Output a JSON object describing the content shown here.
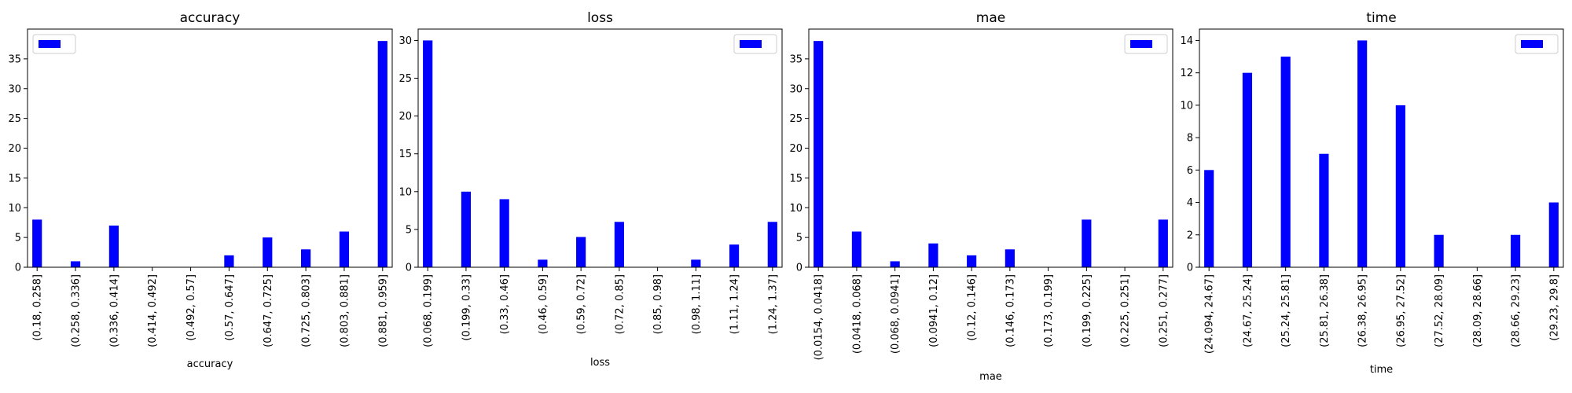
{
  "chart_data": [
    {
      "type": "bar",
      "title": "accuracy",
      "xlabel": "accuracy",
      "ylabel": "",
      "legend": "top-left",
      "grid": false,
      "bar_color": "#0000ff",
      "ylim": [
        0,
        40
      ],
      "yticks": [
        0,
        5,
        10,
        15,
        20,
        25,
        30,
        35
      ],
      "categories": [
        "(0.18, 0.258]",
        "(0.258, 0.336]",
        "(0.336, 0.414]",
        "(0.414, 0.492]",
        "(0.492, 0.57]",
        "(0.57, 0.647]",
        "(0.647, 0.725]",
        "(0.725, 0.803]",
        "(0.803, 0.881]",
        "(0.881, 0.959]"
      ],
      "values": [
        8,
        1,
        7,
        0,
        0,
        2,
        5,
        3,
        6,
        38
      ]
    },
    {
      "type": "bar",
      "title": "loss",
      "xlabel": "loss",
      "ylabel": "",
      "legend": "top-right",
      "grid": false,
      "bar_color": "#0000ff",
      "ylim": [
        0,
        31.5
      ],
      "yticks": [
        0,
        5,
        10,
        15,
        20,
        25,
        30
      ],
      "categories": [
        "(0.068, 0.199]",
        "(0.199, 0.33]",
        "(0.33, 0.46]",
        "(0.46, 0.59]",
        "(0.59, 0.72]",
        "(0.72, 0.85]",
        "(0.85, 0.98]",
        "(0.98, 1.11]",
        "(1.11, 1.24]",
        "(1.24, 1.37]"
      ],
      "values": [
        30,
        10,
        9,
        1,
        4,
        6,
        0,
        1,
        3,
        6
      ]
    },
    {
      "type": "bar",
      "title": "mae",
      "xlabel": "mae",
      "ylabel": "",
      "legend": "top-right",
      "grid": false,
      "bar_color": "#0000ff",
      "ylim": [
        0,
        40
      ],
      "yticks": [
        0,
        5,
        10,
        15,
        20,
        25,
        30,
        35
      ],
      "categories": [
        "(0.0154, 0.0418]",
        "(0.0418, 0.068]",
        "(0.068, 0.0941]",
        "(0.0941, 0.12]",
        "(0.12, 0.146]",
        "(0.146, 0.173]",
        "(0.173, 0.199]",
        "(0.199, 0.225]",
        "(0.225, 0.251]",
        "(0.251, 0.277]"
      ],
      "values": [
        38,
        6,
        1,
        4,
        2,
        3,
        0,
        8,
        0,
        8
      ]
    },
    {
      "type": "bar",
      "title": "time",
      "xlabel": "time",
      "ylabel": "",
      "legend": "top-right",
      "grid": false,
      "bar_color": "#0000ff",
      "ylim": [
        0,
        14.7
      ],
      "yticks": [
        0,
        2,
        4,
        6,
        8,
        10,
        12,
        14
      ],
      "categories": [
        "(24.094, 24.67]",
        "(24.67, 25.24]",
        "(25.24, 25.81]",
        "(25.81, 26.38]",
        "(26.38, 26.95]",
        "(26.95, 27.52]",
        "(27.52, 28.09]",
        "(28.09, 28.66]",
        "(28.66, 29.23]",
        "(29.23, 29.8]"
      ],
      "values": [
        6,
        12,
        13,
        7,
        14,
        10,
        2,
        0,
        2,
        4
      ]
    }
  ]
}
